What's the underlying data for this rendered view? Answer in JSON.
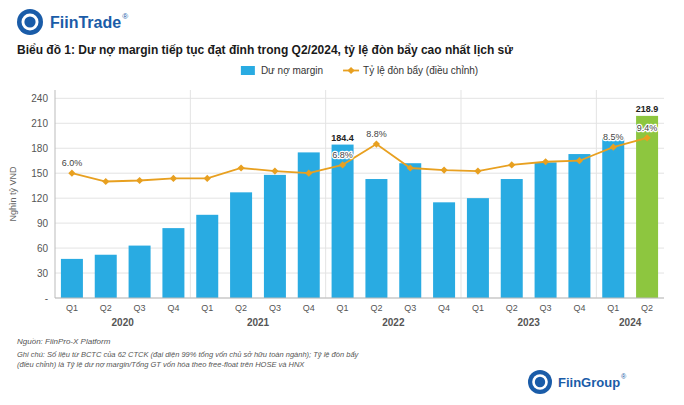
{
  "chart_data": {
    "type": "bar",
    "title": "Biểu đồ 1: Dư nợ margin tiếp tục đạt đỉnh trong Q2/2024, tỷ lệ đòn bẩy cao nhất lịch sử",
    "ylabel": "Nghìn tỷ VND",
    "categories": [
      "Q1",
      "Q2",
      "Q3",
      "Q4",
      "Q1",
      "Q2",
      "Q3",
      "Q4",
      "Q1",
      "Q2",
      "Q3",
      "Q4",
      "Q1",
      "Q2",
      "Q3",
      "Q4",
      "Q1",
      "Q2"
    ],
    "x_group_labels": [
      "2020",
      "2021",
      "2022",
      "2023",
      "2024"
    ],
    "x_group_sizes": [
      4,
      4,
      4,
      4,
      2
    ],
    "series": [
      {
        "name": "Dư nợ margin",
        "type": "bar",
        "color": "#29ABE2",
        "colors": [
          "#29ABE2",
          "#29ABE2",
          "#29ABE2",
          "#29ABE2",
          "#29ABE2",
          "#29ABE2",
          "#29ABE2",
          "#29ABE2",
          "#29ABE2",
          "#29ABE2",
          "#29ABE2",
          "#29ABE2",
          "#29ABE2",
          "#29ABE2",
          "#29ABE2",
          "#29ABE2",
          "#29ABE2",
          "#8DC63F"
        ],
        "values": [
          47,
          52,
          63,
          84,
          100,
          127,
          148,
          175,
          184.4,
          143,
          162,
          115,
          120,
          143,
          163,
          173,
          192,
          218.9
        ],
        "value_labels": [
          null,
          null,
          null,
          null,
          null,
          null,
          null,
          null,
          "184.4",
          null,
          null,
          null,
          null,
          null,
          null,
          null,
          null,
          "218.9"
        ]
      },
      {
        "name": "Tỷ lệ đòn bẩy (điều chỉnh)",
        "type": "line",
        "axis": "y2",
        "color": "#E8A020",
        "marker": "diamond",
        "line_style": "solid",
        "values": [
          6.0,
          5.2,
          5.3,
          5.5,
          5.5,
          6.5,
          6.2,
          6.0,
          6.8,
          8.8,
          6.5,
          6.3,
          6.2,
          6.8,
          7.1,
          7.2,
          8.5,
          9.4
        ],
        "value_labels": [
          "6.0%",
          null,
          null,
          null,
          null,
          null,
          null,
          null,
          "6.8%",
          "8.8%",
          null,
          null,
          null,
          null,
          null,
          null,
          "8.5%",
          "9.4%"
        ]
      }
    ],
    "ylim": [
      0,
      250
    ],
    "yticks": [
      {
        "value": 0,
        "label": "-"
      },
      30,
      60,
      90,
      120,
      150,
      180,
      210,
      240
    ],
    "y2lim": [
      -6,
      14
    ],
    "grid": true,
    "legend": "top",
    "source": "Nguồn: FiinPro-X Platform",
    "note": "Ghi chú: Số liệu từ BCTC của 62 CTCK (đại diện 99% tổng vốn chủ sở hữu toàn ngành); Tỷ lệ đòn bẩy\n(điều chỉnh) là Tỷ lệ dư nợ margin/Tổng GT vốn hóa theo free-float trên HOSE và HNX",
    "logo_text": "FiinTrade",
    "footer_logo_text": "FiinGroup",
    "logo_mark": "®"
  }
}
